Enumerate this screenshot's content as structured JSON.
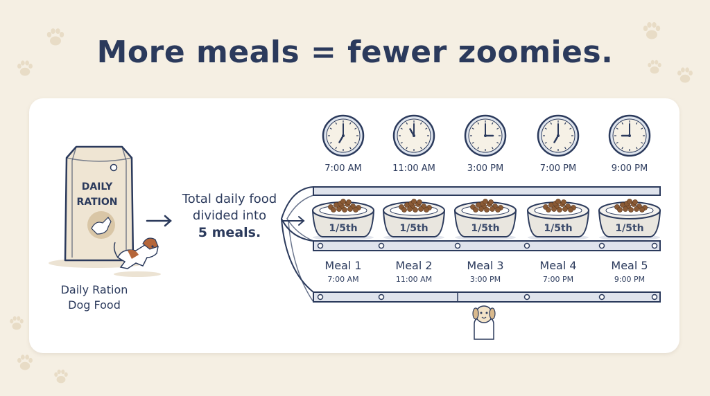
{
  "title": "More meals = fewer zoomies.",
  "bag": {
    "label_line1": "DAILY",
    "label_line2": "RATION",
    "caption_line1": "Daily Ration",
    "caption_line2": "Dog Food"
  },
  "divider_text": {
    "line1": "Total daily food",
    "line2": "divided into",
    "line3": "5 meals."
  },
  "clocks": [
    {
      "time": "7:00 AM",
      "hour": 7,
      "minute": 0
    },
    {
      "time": "11:00 AM",
      "hour": 11,
      "minute": 0
    },
    {
      "time": "3:00 PM",
      "hour": 3,
      "minute": 0
    },
    {
      "time": "7:00 PM",
      "hour": 7,
      "minute": 0
    },
    {
      "time": "9:00 PM",
      "hour": 9,
      "minute": 0
    }
  ],
  "meals": [
    {
      "name": "Meal 1",
      "time": "7:00 AM",
      "portion": "1/5th"
    },
    {
      "name": "Meal 2",
      "time": "11:00 AM",
      "portion": "1/5th"
    },
    {
      "name": "Meal 3",
      "time": "3:00 PM",
      "portion": "1/5th"
    },
    {
      "name": "Meal 4",
      "time": "7:00 PM",
      "portion": "1/5th"
    },
    {
      "name": "Meal 5",
      "time": "9:00 PM",
      "portion": "1/5th"
    }
  ],
  "colors": {
    "navy": "#2b3a5c",
    "background": "#f5efe3",
    "paw": "#e8dcc6",
    "bag": "#efe5d3",
    "kibble": "#8a5a35",
    "belt": "#dfe3ec"
  }
}
